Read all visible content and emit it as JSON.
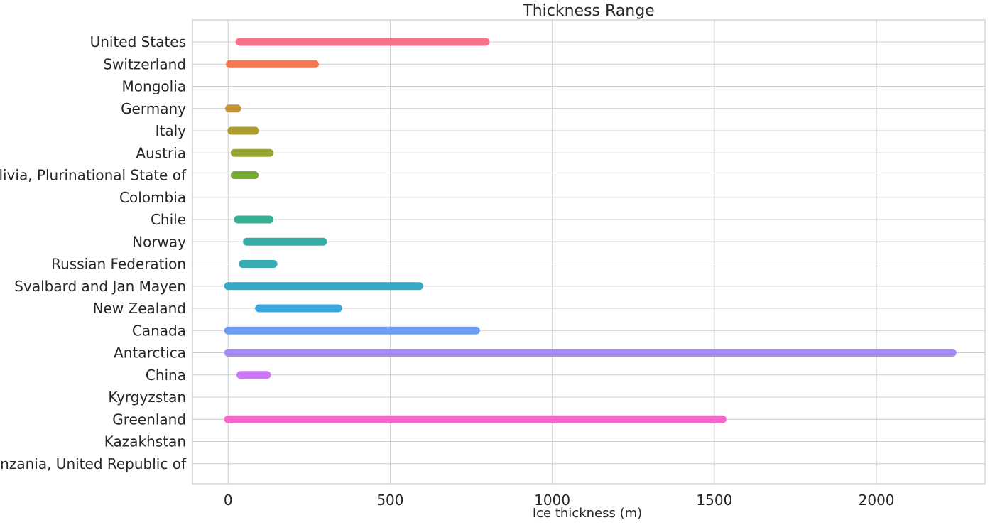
{
  "chart_data": {
    "type": "range-bar",
    "title": "Thickness Range",
    "xlabel": "Ice thickness (m)",
    "ylabel": "",
    "xlim": [
      -110,
      2335
    ],
    "xticks": [
      0,
      500,
      1000,
      1500,
      2000
    ],
    "grid": true,
    "legend": "none",
    "categories": [
      "United States",
      "Switzerland",
      "Mongolia",
      "Germany",
      "Italy",
      "Austria",
      "Bolivia, Plurinational State of",
      "Colombia",
      "Chile",
      "Norway",
      "Russian Federation",
      "Svalbard and Jan Mayen",
      "New Zealand",
      "Canada",
      "Antarctica",
      "China",
      "Kyrgyzstan",
      "Greenland",
      "Kazakhstan",
      "Tanzania, United Republic of"
    ],
    "ranges": [
      {
        "min": 35,
        "max": 795
      },
      {
        "min": 5,
        "max": 268
      },
      null,
      {
        "min": 3,
        "max": 28
      },
      {
        "min": 10,
        "max": 83
      },
      {
        "min": 20,
        "max": 128
      },
      {
        "min": 20,
        "max": 82
      },
      null,
      {
        "min": 30,
        "max": 128
      },
      {
        "min": 58,
        "max": 293
      },
      {
        "min": 45,
        "max": 140
      },
      {
        "min": 0,
        "max": 590
      },
      {
        "min": 95,
        "max": 340
      },
      {
        "min": 0,
        "max": 765
      },
      {
        "min": 0,
        "max": 2235
      },
      {
        "min": 38,
        "max": 120
      },
      null,
      {
        "min": 0,
        "max": 1525
      },
      null,
      null
    ],
    "colors": [
      "#f77189",
      "#f7754f",
      "#dc8932",
      "#c39532",
      "#ae9d31",
      "#97a431",
      "#77ab31",
      "#33b07a",
      "#35ae93",
      "#36ada4",
      "#37abb4",
      "#38a9c5",
      "#3aa5df",
      "#6e9bf4",
      "#a48cf4",
      "#cc7af4",
      "#f45cf2",
      "#f565cc",
      "#f66bad",
      "#f66b8c"
    ]
  }
}
